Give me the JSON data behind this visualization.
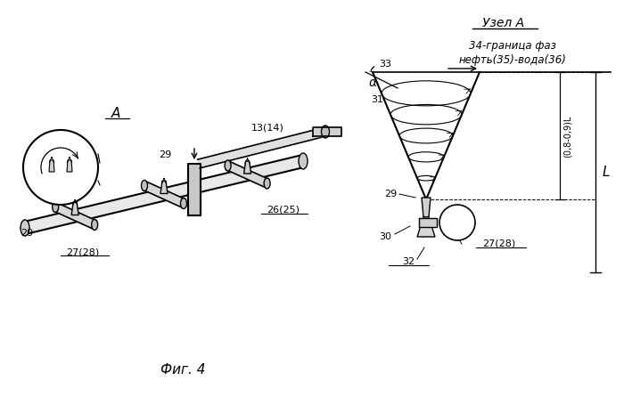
{
  "bg_color": "#ffffff",
  "line_color": "#000000",
  "gray_color": "#888888",
  "light_gray": "#bbbbbb",
  "fig_label": "Фиг. 4",
  "node_label": "Узел А",
  "label_34": "34-граница фаз",
  "label_3536": "нефть(35)-вода(36)",
  "label_A": "А",
  "label_1314": "13(14)",
  "label_2625": "26(25)",
  "label_2728": "27(28)",
  "label_29": "29",
  "label_30": "30",
  "label_31": "31",
  "label_32": "32",
  "label_33": "33",
  "label_alpha": "α",
  "label_L": "L",
  "label_dim": "(0,8-0,9)L"
}
